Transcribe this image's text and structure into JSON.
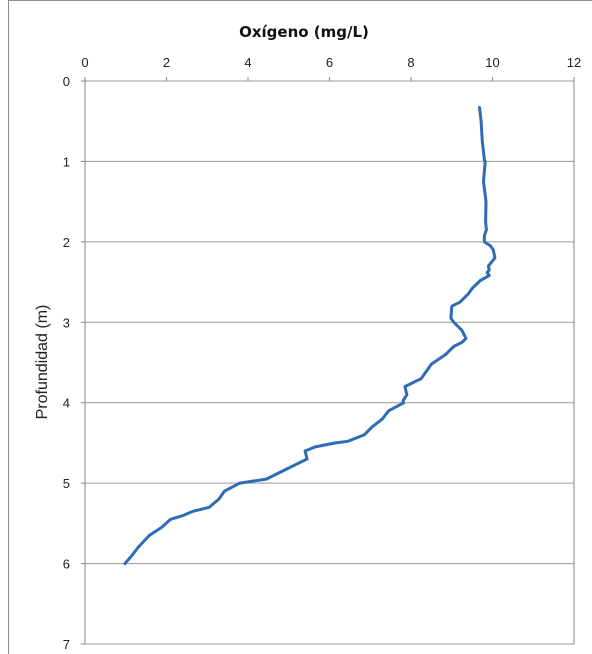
{
  "chart_data": {
    "type": "line",
    "title": "Oxígeno (mg/L)",
    "xlabel": "Oxígeno (mg/L)",
    "ylabel": "Profundidad (m)",
    "xlim": [
      0,
      12
    ],
    "ylim": [
      0,
      7
    ],
    "y_inverted": true,
    "x_axis_position": "top",
    "x_ticks": [
      "0",
      "2",
      "4",
      "6",
      "8",
      "10",
      "12"
    ],
    "y_ticks": [
      "0",
      "1",
      "2",
      "3",
      "4",
      "5",
      "6",
      "7"
    ],
    "grid": "horizontal",
    "legend": "none",
    "series": [
      {
        "color": "#2e6db4",
        "x": [
          9.68,
          9.72,
          9.75,
          9.8,
          9.82,
          9.78,
          9.84,
          9.83,
          9.85,
          9.8,
          9.8,
          9.95,
          10.02,
          10.06,
          9.98,
          9.9,
          9.92,
          9.87,
          9.92,
          9.7,
          9.5,
          9.4,
          9.2,
          9.0,
          8.98,
          9.05,
          9.25,
          9.35,
          9.25,
          9.05,
          8.85,
          8.5,
          8.25,
          8.05,
          7.85,
          7.9,
          7.8,
          7.82,
          7.75,
          7.45,
          7.3,
          7.05,
          6.85,
          6.45,
          6.15,
          5.65,
          5.4,
          5.45,
          5.25,
          4.45,
          3.8,
          3.42,
          3.28,
          3.05,
          2.65,
          2.42,
          2.1,
          1.88,
          1.58,
          1.3,
          1.15,
          0.98
        ],
        "y": [
          0.33,
          0.5,
          0.75,
          0.98,
          1.0,
          1.25,
          1.5,
          1.75,
          1.85,
          1.92,
          2.0,
          2.05,
          2.1,
          2.2,
          2.25,
          2.3,
          2.35,
          2.38,
          2.42,
          2.48,
          2.58,
          2.65,
          2.75,
          2.8,
          2.95,
          3.0,
          3.1,
          3.2,
          3.25,
          3.3,
          3.4,
          3.52,
          3.7,
          3.75,
          3.8,
          3.9,
          3.98,
          4.0,
          4.02,
          4.1,
          4.2,
          4.3,
          4.4,
          4.48,
          4.5,
          4.55,
          4.6,
          4.7,
          4.75,
          4.95,
          5.0,
          5.1,
          5.2,
          5.3,
          5.35,
          5.4,
          5.45,
          5.55,
          5.65,
          5.8,
          5.9,
          6.0
        ]
      }
    ]
  }
}
